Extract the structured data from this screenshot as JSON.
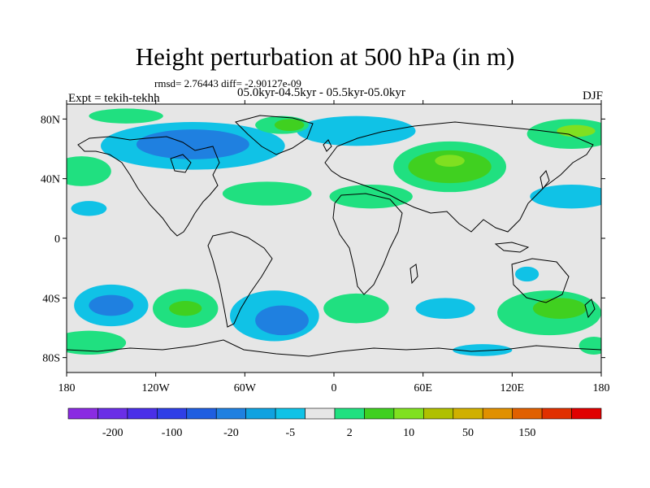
{
  "title": "Height perturbation at 500 hPa (in m)",
  "stats": "rmsd= 2.76443 diff= -2.90127e-09",
  "period": "05.0kyr-04.5kyr - 05.5kyr-05.0kyr",
  "experiment": "Expt = tekih-tekhh",
  "season": "DJF",
  "axes": {
    "lon_range": [
      -180,
      180
    ],
    "lat_range": [
      -90,
      90
    ],
    "x_ticks": [
      {
        "value": -180,
        "label": "180"
      },
      {
        "value": -120,
        "label": "120W"
      },
      {
        "value": -60,
        "label": "60W"
      },
      {
        "value": 0,
        "label": "0"
      },
      {
        "value": 60,
        "label": "60E"
      },
      {
        "value": 120,
        "label": "120E"
      },
      {
        "value": 180,
        "label": "180"
      }
    ],
    "y_ticks": [
      {
        "value": 80,
        "label": "80N"
      },
      {
        "value": 40,
        "label": "40N"
      },
      {
        "value": 0,
        "label": "0"
      },
      {
        "value": -40,
        "label": "40S"
      },
      {
        "value": -80,
        "label": "80S"
      }
    ]
  },
  "colorbar": {
    "colors": [
      "#8a2be2",
      "#6a2ee6",
      "#4a2fe8",
      "#2f3fe6",
      "#1f5ee0",
      "#1f80e0",
      "#10a2e0",
      "#10c2e6",
      "#e6e6e6",
      "#20e080",
      "#40d020",
      "#80e020",
      "#b0c000",
      "#d0b000",
      "#e09000",
      "#e06000",
      "#e03000",
      "#e00000"
    ],
    "labels": [
      {
        "index": 1,
        "text": "-200"
      },
      {
        "index": 3,
        "text": "-100"
      },
      {
        "index": 5,
        "text": "-20"
      },
      {
        "index": 7,
        "text": "-5"
      },
      {
        "index": 9,
        "text": "2"
      },
      {
        "index": 11,
        "text": "10"
      },
      {
        "index": 13,
        "text": "50"
      },
      {
        "index": 15,
        "text": "150"
      }
    ]
  },
  "field": {
    "background": "#e6e6e6",
    "regions": [
      {
        "name": "north-atlantic-arctic-negative",
        "color": "#10c2e6",
        "lon": -95,
        "lat": 62,
        "rx": 62,
        "ry": 16
      },
      {
        "name": "north-canada-strong-negative",
        "color": "#1f80e0",
        "lon": -95,
        "lat": 63,
        "rx": 38,
        "ry": 10
      },
      {
        "name": "siberia-negative",
        "color": "#10c2e6",
        "lon": 15,
        "lat": 72,
        "rx": 40,
        "ry": 10
      },
      {
        "name": "greenland-positive",
        "color": "#20e080",
        "lon": -35,
        "lat": 76,
        "rx": 18,
        "ry": 6
      },
      {
        "name": "greenland-core-positive",
        "color": "#40d020",
        "lon": -30,
        "lat": 76,
        "rx": 10,
        "ry": 4
      },
      {
        "name": "arctic-pacific-positive",
        "color": "#20e080",
        "lon": -140,
        "lat": 82,
        "rx": 25,
        "ry": 5
      },
      {
        "name": "central-asia-positive",
        "color": "#20e080",
        "lon": 78,
        "lat": 48,
        "rx": 38,
        "ry": 17
      },
      {
        "name": "central-asia-core",
        "color": "#40d020",
        "lon": 78,
        "lat": 48,
        "rx": 28,
        "ry": 11
      },
      {
        "name": "central-asia-peak",
        "color": "#80e020",
        "lon": 78,
        "lat": 52,
        "rx": 10,
        "ry": 4
      },
      {
        "name": "east-siberia-positive",
        "color": "#20e080",
        "lon": 160,
        "lat": 70,
        "rx": 30,
        "ry": 10
      },
      {
        "name": "east-siberia-peak",
        "color": "#80e020",
        "lon": 163,
        "lat": 72,
        "rx": 13,
        "ry": 4
      },
      {
        "name": "north-pacific-positive",
        "color": "#20e080",
        "lon": -170,
        "lat": 45,
        "rx": 20,
        "ry": 10
      },
      {
        "name": "atlantic-positive",
        "color": "#20e080",
        "lon": -45,
        "lat": 30,
        "rx": 30,
        "ry": 8
      },
      {
        "name": "africa-positive",
        "color": "#20e080",
        "lon": 25,
        "lat": 28,
        "rx": 28,
        "ry": 8
      },
      {
        "name": "pacific-west-negative",
        "color": "#10c2e6",
        "lon": 160,
        "lat": 28,
        "rx": 28,
        "ry": 8
      },
      {
        "name": "north-pacific-negative",
        "color": "#10c2e6",
        "lon": -165,
        "lat": 20,
        "rx": 12,
        "ry": 5
      },
      {
        "name": "south-pacific-negative",
        "color": "#10c2e6",
        "lon": -150,
        "lat": -45,
        "rx": 25,
        "ry": 14
      },
      {
        "name": "south-pacific-core",
        "color": "#1f80e0",
        "lon": -150,
        "lat": -45,
        "rx": 15,
        "ry": 7
      },
      {
        "name": "south-pacific-east-positive",
        "color": "#20e080",
        "lon": -100,
        "lat": -47,
        "rx": 22,
        "ry": 13
      },
      {
        "name": "south-pacific-east-core",
        "color": "#40d020",
        "lon": -100,
        "lat": -47,
        "rx": 11,
        "ry": 5
      },
      {
        "name": "south-atlantic-negative",
        "color": "#10c2e6",
        "lon": -40,
        "lat": -52,
        "rx": 30,
        "ry": 17
      },
      {
        "name": "south-atlantic-core",
        "color": "#1f80e0",
        "lon": -35,
        "lat": -55,
        "rx": 18,
        "ry": 10
      },
      {
        "name": "south-indian-positive",
        "color": "#20e080",
        "lon": 15,
        "lat": -47,
        "rx": 22,
        "ry": 10
      },
      {
        "name": "indian-ocean-negative",
        "color": "#10c2e6",
        "lon": 75,
        "lat": -47,
        "rx": 20,
        "ry": 7
      },
      {
        "name": "australia-south-positive",
        "color": "#20e080",
        "lon": 145,
        "lat": -50,
        "rx": 35,
        "ry": 15
      },
      {
        "name": "australia-south-core",
        "color": "#40d020",
        "lon": 152,
        "lat": -47,
        "rx": 18,
        "ry": 7
      },
      {
        "name": "australia-negative",
        "color": "#10c2e6",
        "lon": 130,
        "lat": -24,
        "rx": 8,
        "ry": 5
      },
      {
        "name": "southern-ocean-positive",
        "color": "#20e080",
        "lon": -165,
        "lat": -70,
        "rx": 25,
        "ry": 8
      },
      {
        "name": "antarctic-negative",
        "color": "#10c2e6",
        "lon": 100,
        "lat": -75,
        "rx": 20,
        "ry": 4
      },
      {
        "name": "antarctic-east-positive",
        "color": "#20e080",
        "lon": 175,
        "lat": -72,
        "rx": 10,
        "ry": 6
      }
    ]
  }
}
